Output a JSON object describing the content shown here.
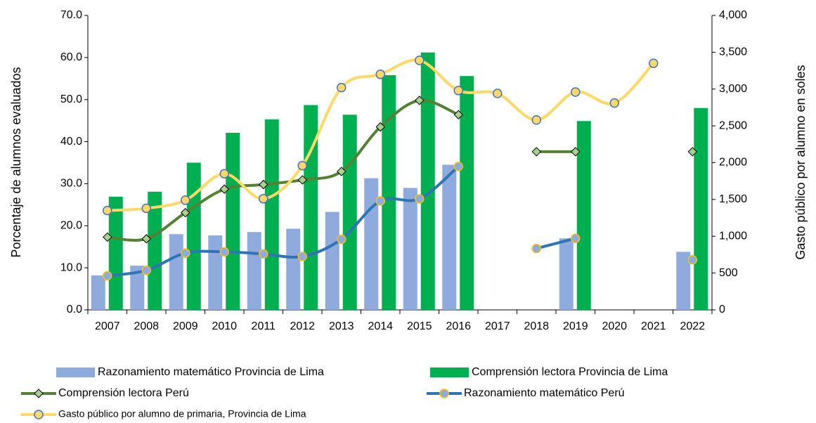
{
  "chart_data": {
    "type": "bar",
    "categories": [
      "2007",
      "2008",
      "2009",
      "2010",
      "2011",
      "2012",
      "2013",
      "2014",
      "2015",
      "2016",
      "2017",
      "2018",
      "2019",
      "2020",
      "2021",
      "2022"
    ],
    "ylabel": "Porcentaje de alumnos evaluados",
    "y2label": "Gasto público por alumno en soles",
    "ylim": [
      0,
      70
    ],
    "yticks": [
      {
        "value": 0,
        "label": "0.0"
      },
      {
        "value": 10,
        "label": "10.0"
      },
      {
        "value": 20,
        "label": "20.0"
      },
      {
        "value": 30,
        "label": "30.0"
      },
      {
        "value": 40,
        "label": "40.0"
      },
      {
        "value": 50,
        "label": "50.0"
      },
      {
        "value": 60,
        "label": "60.0"
      },
      {
        "value": 70,
        "label": "70.0"
      }
    ],
    "y2lim": [
      0,
      4000
    ],
    "y2ticks": [
      0,
      500,
      {
        "value": 1000,
        "label": "1,000"
      },
      {
        "value": 1500,
        "label": "1,500"
      },
      {
        "value": 2000,
        "label": "2,000"
      },
      {
        "value": 2500,
        "label": "2,500"
      },
      {
        "value": 3000,
        "label": "3,000"
      },
      {
        "value": 3500,
        "label": "3,500"
      },
      {
        "value": 4000,
        "label": "4,000"
      }
    ],
    "series": [
      {
        "name": "Razonamiento matemático Provincia de Lima",
        "type": "bar",
        "color": "#8faadc",
        "values": [
          8.2,
          10.5,
          18.0,
          17.7,
          18.5,
          19.3,
          23.3,
          31.3,
          29.0,
          34.5,
          null,
          null,
          17.0,
          null,
          null,
          13.8
        ]
      },
      {
        "name": "Comprensión lectora Provincia de Lima",
        "type": "bar",
        "color": "#00b050",
        "values": [
          26.9,
          28.1,
          35.0,
          42.1,
          45.3,
          48.7,
          46.4,
          55.8,
          61.2,
          55.6,
          null,
          null,
          44.9,
          null,
          null,
          48.0
        ]
      },
      {
        "name": "Comprensión lectora Perú",
        "type": "line",
        "color": "#548235",
        "marker": "diamond",
        "marker_fill": "#a9d18e",
        "marker_stroke": "#000000",
        "values": [
          17.3,
          16.9,
          23.1,
          28.7,
          29.8,
          30.9,
          32.9,
          43.5,
          49.8,
          46.4,
          null,
          37.6,
          37.6,
          null,
          null,
          37.6
        ]
      },
      {
        "name": "Razonamiento matemático Perú",
        "type": "line",
        "color": "#2e75b6",
        "marker": "circle",
        "marker_fill": "#8faadc",
        "marker_stroke": "#ffc000",
        "values": [
          8.1,
          9.4,
          13.5,
          13.8,
          13.3,
          12.7,
          16.8,
          25.9,
          26.4,
          34.1,
          null,
          14.6,
          17.0,
          null,
          null,
          11.9
        ]
      },
      {
        "name": "Gasto público por alumno de primaria, Provincia de Lima",
        "type": "line",
        "axis": "y2",
        "color": "#ffd966",
        "marker": "circle",
        "marker_fill": "#ffd966",
        "marker_stroke": "#4472c4",
        "values": [
          1350,
          1380,
          1490,
          1850,
          1510,
          1960,
          3020,
          3200,
          3390,
          2980,
          2940,
          2580,
          2960,
          2810,
          3350,
          null
        ]
      }
    ]
  }
}
